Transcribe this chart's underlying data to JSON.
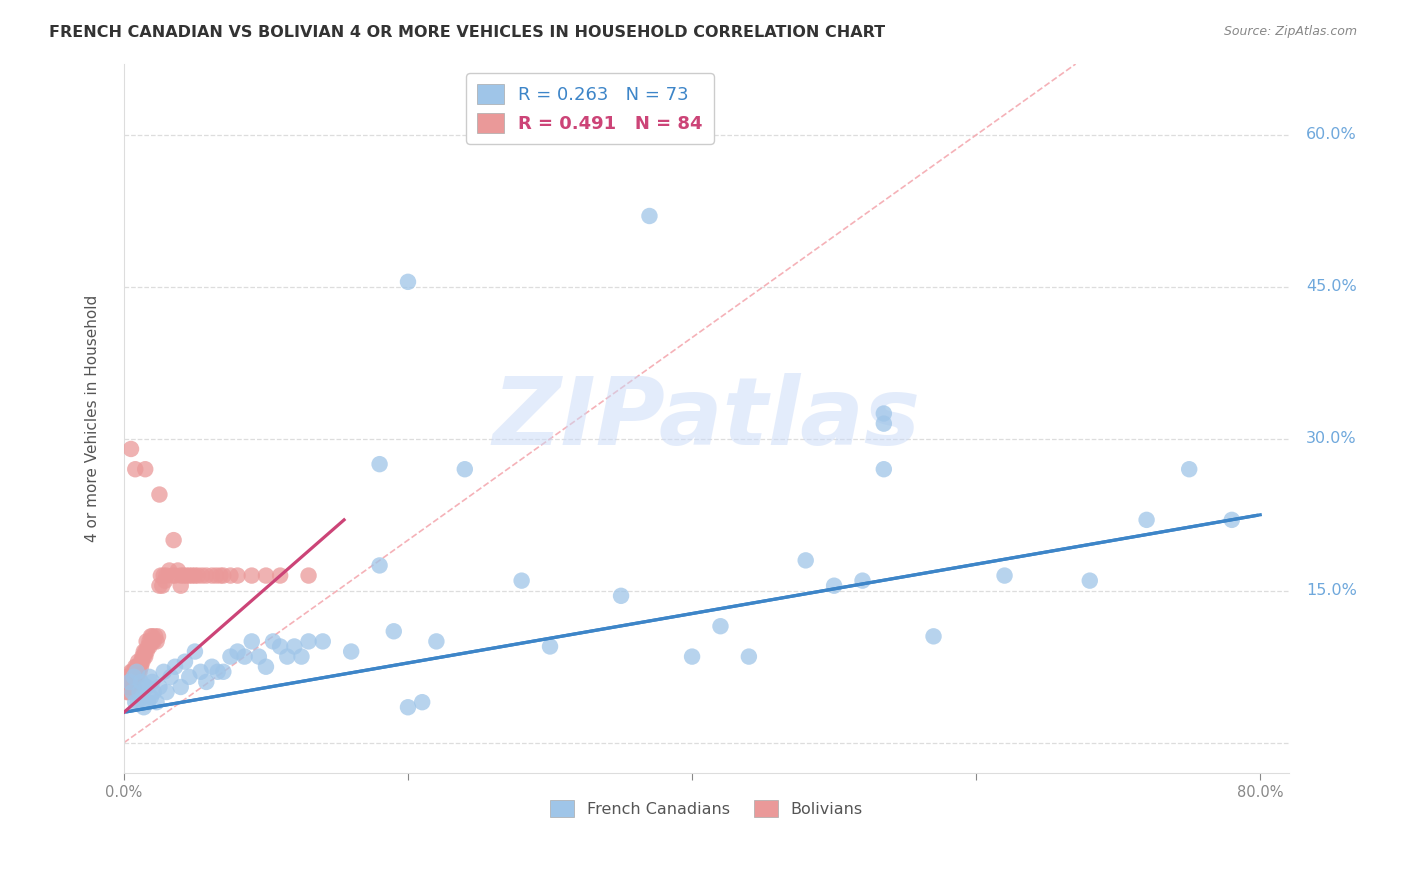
{
  "title": "FRENCH CANADIAN VS BOLIVIAN 4 OR MORE VEHICLES IN HOUSEHOLD CORRELATION CHART",
  "source": "Source: ZipAtlas.com",
  "ylabel": "4 or more Vehicles in Household",
  "xlim": [
    0.0,
    0.82
  ],
  "ylim": [
    -0.03,
    0.67
  ],
  "ytick_vals": [
    0.0,
    0.15,
    0.3,
    0.45,
    0.6
  ],
  "ytick_labels_right": [
    "15.0%",
    "30.0%",
    "45.0%",
    "60.0%"
  ],
  "xtick_labels": [
    "0.0%",
    "",
    "",
    "",
    "80.0%"
  ],
  "french_canadian_R": 0.263,
  "french_canadian_N": 73,
  "bolivian_R": 0.491,
  "bolivian_N": 84,
  "blue_scatter_color": "#9fc5e8",
  "pink_scatter_color": "#ea9999",
  "blue_line_color": "#3d85c8",
  "pink_line_color": "#cc4477",
  "diagonal_color": "#f4a9b0",
  "diagonal_style": "--",
  "watermark_text": "ZIPatlas",
  "watermark_color": "#c9daf8",
  "blue_trend_start_x": 0.0,
  "blue_trend_start_y": 0.03,
  "blue_trend_end_x": 0.8,
  "blue_trend_end_y": 0.225,
  "pink_trend_start_x": 0.0,
  "pink_trend_start_y": 0.03,
  "pink_trend_end_x": 0.155,
  "pink_trend_end_y": 0.22,
  "fc_x": [
    0.37,
    0.2,
    0.535,
    0.535,
    0.535,
    0.004,
    0.006,
    0.007,
    0.008,
    0.009,
    0.01,
    0.011,
    0.012,
    0.013,
    0.014,
    0.015,
    0.016,
    0.017,
    0.018,
    0.019,
    0.02,
    0.021,
    0.023,
    0.025,
    0.028,
    0.03,
    0.033,
    0.036,
    0.04,
    0.043,
    0.046,
    0.05,
    0.054,
    0.058,
    0.062,
    0.066,
    0.07,
    0.075,
    0.08,
    0.085,
    0.09,
    0.095,
    0.1,
    0.105,
    0.11,
    0.115,
    0.12,
    0.125,
    0.13,
    0.14,
    0.16,
    0.18,
    0.19,
    0.2,
    0.21,
    0.22,
    0.24,
    0.28,
    0.3,
    0.35,
    0.4,
    0.44,
    0.48,
    0.52,
    0.57,
    0.62,
    0.68,
    0.72,
    0.75,
    0.78,
    0.42,
    0.5,
    0.18
  ],
  "fc_y": [
    0.52,
    0.455,
    0.325,
    0.27,
    0.315,
    0.06,
    0.05,
    0.065,
    0.04,
    0.07,
    0.04,
    0.05,
    0.06,
    0.045,
    0.035,
    0.055,
    0.055,
    0.04,
    0.065,
    0.045,
    0.06,
    0.05,
    0.04,
    0.055,
    0.07,
    0.05,
    0.065,
    0.075,
    0.055,
    0.08,
    0.065,
    0.09,
    0.07,
    0.06,
    0.075,
    0.07,
    0.07,
    0.085,
    0.09,
    0.085,
    0.1,
    0.085,
    0.075,
    0.1,
    0.095,
    0.085,
    0.095,
    0.085,
    0.1,
    0.1,
    0.09,
    0.175,
    0.11,
    0.035,
    0.04,
    0.1,
    0.27,
    0.16,
    0.095,
    0.145,
    0.085,
    0.085,
    0.18,
    0.16,
    0.105,
    0.165,
    0.16,
    0.22,
    0.27,
    0.22,
    0.115,
    0.155,
    0.275
  ],
  "bv_x": [
    0.001,
    0.001,
    0.002,
    0.002,
    0.002,
    0.003,
    0.003,
    0.003,
    0.004,
    0.004,
    0.005,
    0.005,
    0.005,
    0.006,
    0.006,
    0.006,
    0.007,
    0.007,
    0.007,
    0.008,
    0.008,
    0.008,
    0.009,
    0.009,
    0.01,
    0.01,
    0.01,
    0.011,
    0.011,
    0.012,
    0.012,
    0.013,
    0.013,
    0.014,
    0.014,
    0.015,
    0.015,
    0.016,
    0.016,
    0.017,
    0.018,
    0.018,
    0.019,
    0.02,
    0.02,
    0.021,
    0.022,
    0.023,
    0.024,
    0.025,
    0.026,
    0.027,
    0.028,
    0.029,
    0.03,
    0.032,
    0.034,
    0.036,
    0.038,
    0.04,
    0.042,
    0.044,
    0.046,
    0.048,
    0.05,
    0.052,
    0.055,
    0.058,
    0.062,
    0.065,
    0.068,
    0.07,
    0.075,
    0.08,
    0.09,
    0.1,
    0.11,
    0.13,
    0.005,
    0.008,
    0.015,
    0.025,
    0.035,
    0.04
  ],
  "bv_y": [
    0.055,
    0.06,
    0.05,
    0.06,
    0.065,
    0.05,
    0.06,
    0.065,
    0.055,
    0.06,
    0.055,
    0.065,
    0.07,
    0.06,
    0.065,
    0.07,
    0.055,
    0.07,
    0.065,
    0.075,
    0.065,
    0.07,
    0.065,
    0.075,
    0.07,
    0.075,
    0.08,
    0.07,
    0.075,
    0.075,
    0.08,
    0.08,
    0.085,
    0.085,
    0.09,
    0.085,
    0.09,
    0.09,
    0.1,
    0.095,
    0.1,
    0.095,
    0.105,
    0.1,
    0.105,
    0.1,
    0.105,
    0.1,
    0.105,
    0.155,
    0.165,
    0.155,
    0.165,
    0.16,
    0.165,
    0.17,
    0.165,
    0.165,
    0.17,
    0.165,
    0.165,
    0.165,
    0.165,
    0.165,
    0.165,
    0.165,
    0.165,
    0.165,
    0.165,
    0.165,
    0.165,
    0.165,
    0.165,
    0.165,
    0.165,
    0.165,
    0.165,
    0.165,
    0.29,
    0.27,
    0.27,
    0.245,
    0.2,
    0.155
  ]
}
